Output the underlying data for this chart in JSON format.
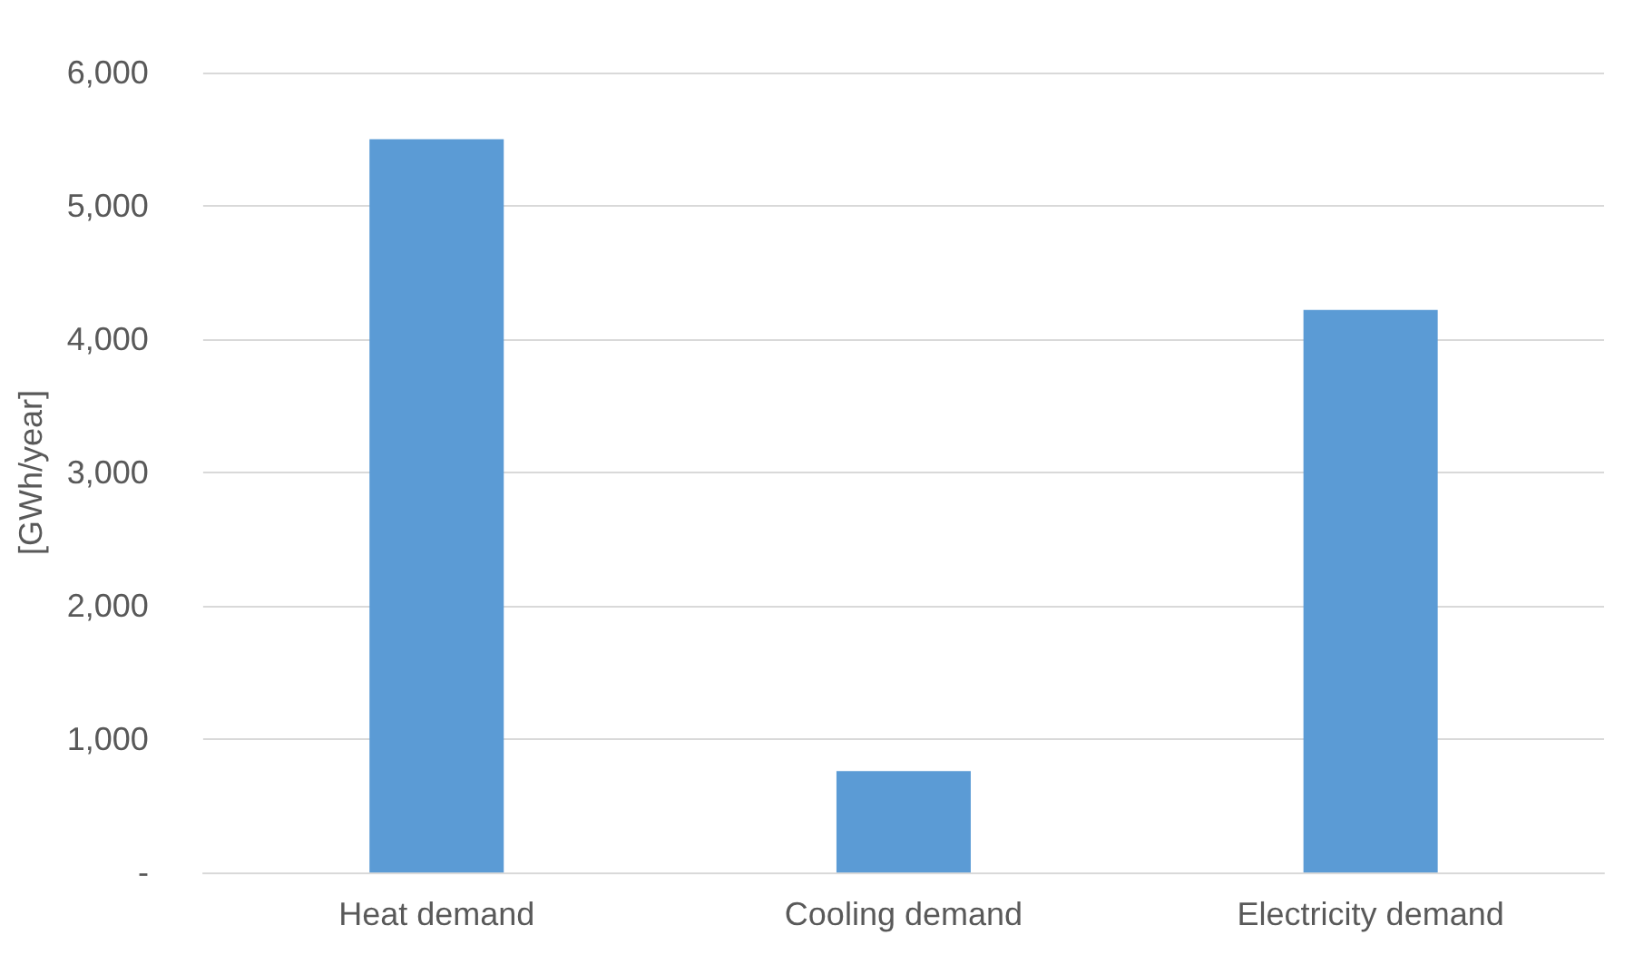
{
  "chart_data": {
    "type": "bar",
    "ylabel": "[GWh/year]",
    "categories": [
      "Heat demand",
      "Cooling demand",
      "Electricity demand"
    ],
    "values": [
      5500,
      760,
      4220
    ],
    "color": "#5b9bd5",
    "ylim": [
      0,
      6000
    ],
    "yticks": [
      {
        "value": 0,
        "label": "-"
      },
      {
        "value": 1000,
        "label": "1,000"
      },
      {
        "value": 2000,
        "label": "2,000"
      },
      {
        "value": 3000,
        "label": "3,000"
      },
      {
        "value": 4000,
        "label": "4,000"
      },
      {
        "value": 5000,
        "label": "5,000"
      },
      {
        "value": 6000,
        "label": "6,000"
      }
    ],
    "grid": "y"
  }
}
